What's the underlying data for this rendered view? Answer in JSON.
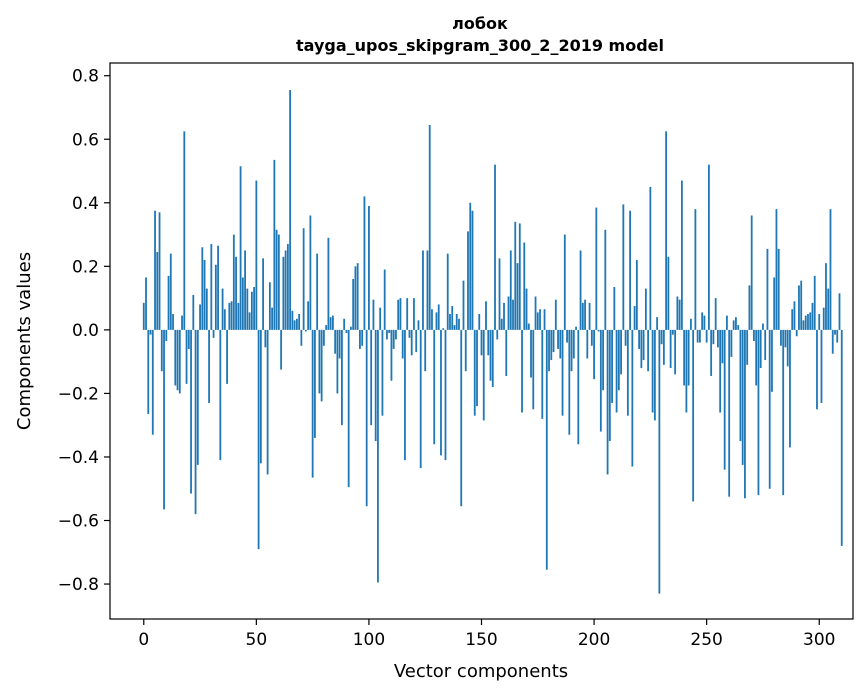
{
  "chart_data": {
    "type": "bar",
    "title": "лобок",
    "subtitle": "tayga_upos_skipgram_300_2_2019 model",
    "xlabel": "Vector components",
    "ylabel": "Components values",
    "xlim": [
      -15,
      315
    ],
    "ylim": [
      -0.91,
      0.84
    ],
    "xticks": [
      0,
      50,
      100,
      150,
      200,
      250,
      300
    ],
    "yticks": [
      -0.8,
      -0.6,
      -0.4,
      -0.2,
      0.0,
      0.2,
      0.4,
      0.6,
      0.8
    ],
    "ytick_labels": [
      "−0.8",
      "−0.6",
      "−0.4",
      "−0.2",
      "0.0",
      "0.2",
      "0.4",
      "0.6",
      "0.8"
    ],
    "bar_color": "#1f77b4",
    "grid": false,
    "values": [
      0.085,
      0.165,
      -0.265,
      -0.015,
      -0.33,
      0.375,
      0.245,
      0.37,
      -0.13,
      -0.565,
      -0.035,
      0.17,
      0.24,
      0.05,
      -0.175,
      -0.19,
      -0.2,
      0.045,
      0.625,
      -0.17,
      -0.06,
      -0.515,
      0.11,
      -0.58,
      -0.425,
      0.08,
      0.26,
      0.22,
      0.13,
      -0.23,
      0.27,
      -0.025,
      0.205,
      0.265,
      -0.41,
      0.13,
      0.065,
      -0.17,
      0.085,
      0.09,
      0.3,
      0.23,
      0.085,
      0.515,
      0.165,
      0.25,
      0.13,
      0.055,
      0.12,
      0.135,
      0.47,
      -0.69,
      -0.42,
      0.225,
      -0.055,
      -0.455,
      0.15,
      0.07,
      0.535,
      0.315,
      0.3,
      -0.125,
      0.23,
      0.25,
      0.27,
      0.755,
      0.06,
      0.03,
      0.035,
      0.05,
      -0.05,
      0.32,
      -0.005,
      0.09,
      0.36,
      -0.465,
      -0.34,
      0.24,
      -0.2,
      -0.225,
      -0.05,
      0.015,
      0.29,
      0.04,
      0.045,
      -0.075,
      -0.2,
      -0.09,
      -0.3,
      0.035,
      -0.01,
      -0.495,
      0.01,
      0.16,
      0.2,
      0.21,
      -0.06,
      -0.05,
      0.42,
      -0.555,
      0.39,
      -0.3,
      0.095,
      -0.35,
      -0.795,
      0.07,
      -0.27,
      0.19,
      -0.03,
      -0.01,
      -0.16,
      -0.06,
      -0.03,
      0.095,
      0.1,
      -0.09,
      -0.41,
      0.1,
      -0.025,
      -0.08,
      0.1,
      -0.07,
      0.03,
      -0.435,
      0.25,
      -0.13,
      0.25,
      0.645,
      0.065,
      -0.36,
      0.055,
      0.08,
      -0.395,
      0.005,
      -0.41,
      0.24,
      0.05,
      0.075,
      0.015,
      0.05,
      0.035,
      -0.555,
      0.155,
      -0.13,
      0.31,
      0.4,
      0.375,
      -0.27,
      -0.24,
      0.05,
      -0.08,
      -0.285,
      0.09,
      -0.08,
      -0.16,
      -0.18,
      0.52,
      -0.03,
      0.225,
      0.035,
      0.085,
      -0.145,
      0.105,
      0.25,
      0.095,
      0.34,
      0.21,
      0.335,
      -0.26,
      0.275,
      0.13,
      0.02,
      -0.15,
      -0.25,
      0.105,
      0.055,
      0.065,
      -0.28,
      0.065,
      -0.755,
      -0.13,
      -0.095,
      -0.07,
      0.095,
      -0.06,
      -0.09,
      -0.27,
      0.3,
      -0.04,
      -0.33,
      -0.13,
      -0.09,
      0.01,
      -0.36,
      0.25,
      0.085,
      0.095,
      -0.09,
      0.085,
      -0.05,
      -0.155,
      0.385,
      -0.005,
      -0.32,
      -0.19,
      0.315,
      -0.455,
      -0.35,
      -0.23,
      0.135,
      -0.26,
      -0.19,
      -0.14,
      0.395,
      -0.05,
      -0.27,
      0.375,
      -0.43,
      0.075,
      0.22,
      -0.06,
      -0.12,
      -0.095,
      0.13,
      -0.13,
      0.45,
      -0.26,
      -0.285,
      0.04,
      -0.83,
      -0.045,
      -0.11,
      0.625,
      0.23,
      -0.12,
      -0.015,
      -0.14,
      0.105,
      0.095,
      0.47,
      -0.175,
      -0.26,
      -0.175,
      0.035,
      -0.54,
      0.38,
      -0.04,
      -0.04,
      0.055,
      0.045,
      -0.04,
      0.52,
      -0.145,
      -0.045,
      0.1,
      -0.055,
      -0.26,
      -0.105,
      -0.44,
      0.045,
      -0.525,
      -0.085,
      0.03,
      0.04,
      0.015,
      -0.35,
      -0.425,
      -0.53,
      -0.11,
      0.14,
      0.36,
      -0.035,
      -0.175,
      -0.52,
      -0.12,
      0.02,
      -0.095,
      0.255,
      -0.5,
      -0.195,
      0.165,
      0.38,
      0.255,
      -0.05,
      -0.52,
      -0.055,
      -0.115,
      -0.37,
      0.065,
      0.09,
      -0.02,
      0.14,
      0.155,
      0.03,
      0.045,
      0.05,
      0.055,
      0.085,
      0.17,
      -0.25,
      0.05,
      -0.23,
      0.07,
      0.21,
      0.13,
      0.38,
      -0.075,
      -0.015,
      -0.04,
      0.115,
      -0.68
    ]
  }
}
